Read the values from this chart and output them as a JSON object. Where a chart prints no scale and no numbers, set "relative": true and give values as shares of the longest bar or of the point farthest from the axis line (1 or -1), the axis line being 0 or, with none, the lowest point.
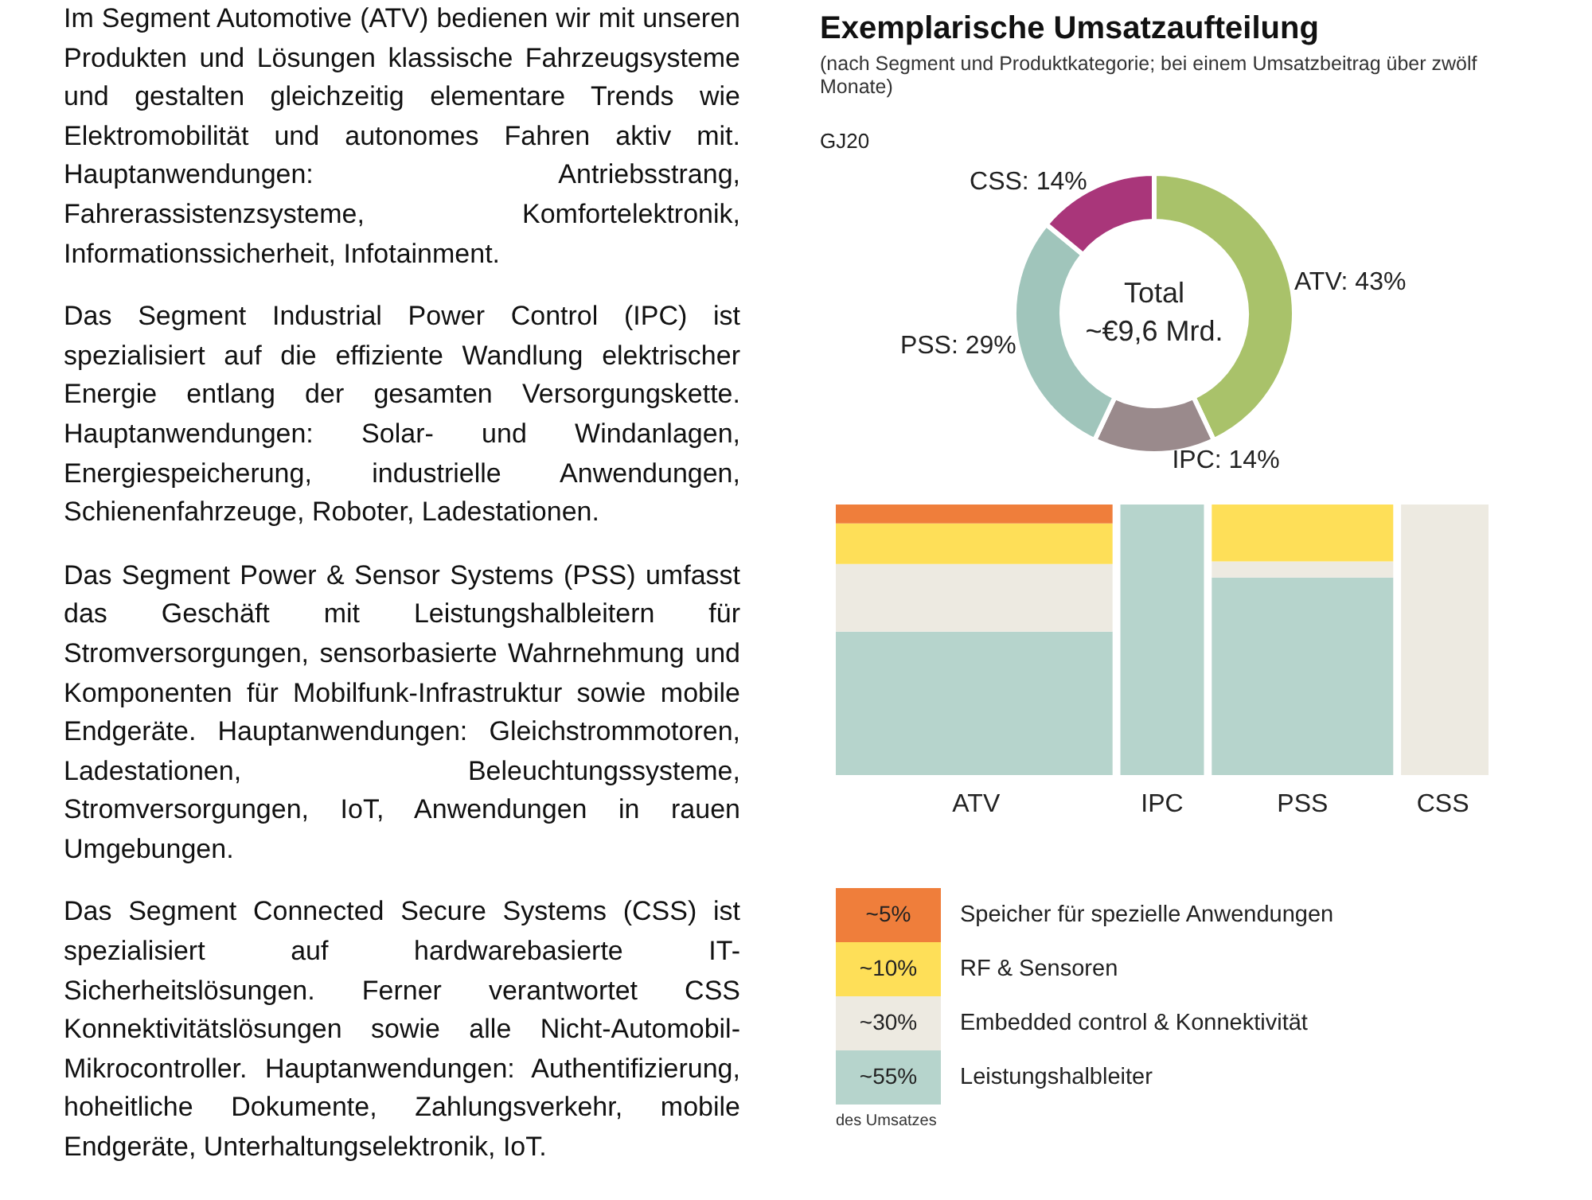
{
  "chart_data": [
    {
      "type": "other",
      "annotations": [
        "Im Segment Automotive (ATV) bedienen wir mit unseren Produkten und Lösungen klassische Fahrzeugsysteme und gestalten gleichzeitig elementare Trends wie Elektromobilität und autonomes Fahren aktiv mit. Hauptanwendungen: Antriebsstrang, Fahrerassistenzsysteme, Komfortelektronik, Informationssicherheit, Infotainment.",
        "Das Segment Industrial Power Control (IPC) ist spezialisiert auf die effiziente Wandlung elektrischer Energie entlang der gesamten Versorgungskette. Hauptanwendungen: Solar- und Windanlagen, Energiespeicherung, industrielle Anwendungen, Schienenfahrzeuge, Roboter, Ladestationen.",
        "Das Segment Power & Sensor Systems (PSS) umfasst das Geschäft mit Leistungshalbleitern für Stromversorgungen, sensorbasierte Wahrnehmung und Komponenten für Mobilfunk-Infrastruktur sowie mobile Endgeräte. Hauptanwendungen: Gleichstrommotoren, Ladestationen, Beleuchtungssysteme, Stromversorgungen, IoT, Anwendungen in rauen Umgebungen.",
        "Das Segment Connected Secure Systems (CSS) ist spezialisiert auf hardwarebasierte IT-Sicherheitslösungen. Ferner verantwortet CSS Konnektivitätslösungen sowie alle Nicht-Automobil-Mikrocontroller. Hauptanwendungen: Authentifizierung, hoheitliche Dokumente, Zahlungsverkehr, mobile Endgeräte, Unterhaltungselektronik, IoT."
      ]
    },
    {
      "type": "donut",
      "title": "Exemplarische Umsatzaufteilung",
      "subtitle": "(nach Segment und Produktkategorie; bei einem Umsatzbeitrag über zwölf Monate)",
      "categories": [
        "ATV",
        "IPC",
        "PSS",
        "CSS"
      ],
      "values": [
        43,
        14,
        29,
        14
      ],
      "colors": [
        "#a9c26a",
        "#9a8a8c",
        "#a0c5bb",
        "#a9367a"
      ],
      "value_labels": [
        "43%",
        "14%",
        "29%",
        "14%"
      ],
      "annotations": [
        "GJ20",
        "Total",
        "~€9,6 Mrd."
      ]
    },
    {
      "type": "bar",
      "stacked": true,
      "relative": true,
      "legend": "bottom",
      "categories": [
        "ATV",
        "IPC",
        "PSS",
        "CSS"
      ],
      "series": [
        {
          "name": "Leistungshalbleiter",
          "color": "#b6d4cc",
          "values": [
            0.53,
            1,
            0.73,
            0
          ]
        },
        {
          "name": "Embedded control & Konnektivität",
          "color": "#edeae1",
          "values": [
            0.25,
            0,
            0.06,
            1
          ]
        },
        {
          "name": "RF & Sensoren",
          "color": "#fedf58",
          "values": [
            0.15,
            0,
            0.21,
            0
          ]
        },
        {
          "name": "Speicher für spezielle Anwendungen",
          "color": "#ef7e3b",
          "values": [
            0.07,
            0,
            0,
            0
          ]
        }
      ],
      "annotations": [
        "~55%",
        "~30%",
        "~10%",
        "~5%",
        "des Umsatzes"
      ]
    }
  ]
}
